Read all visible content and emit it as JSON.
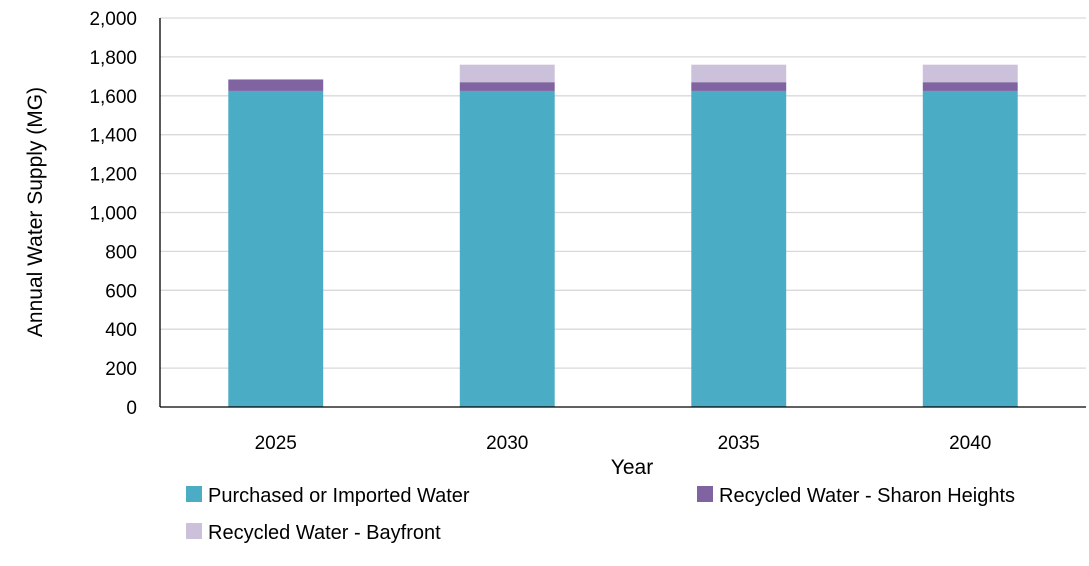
{
  "chart_data": {
    "type": "bar",
    "stacked": true,
    "title": "",
    "xlabel": "Year",
    "ylabel": "Annual Water Supply (MG)",
    "categories": [
      "2025",
      "2030",
      "2035",
      "2040"
    ],
    "ylim": [
      0,
      2000
    ],
    "yticks": [
      0,
      200,
      400,
      600,
      800,
      1000,
      1200,
      1400,
      1600,
      1800,
      2000
    ],
    "ytick_labels": [
      "0",
      "200",
      "400",
      "600",
      "800",
      "1,000",
      "1,200",
      "1,400",
      "1,600",
      "1,800",
      "2,000"
    ],
    "grid": true,
    "legend_position": "bottom",
    "series": [
      {
        "name": "Purchased or Imported Water",
        "color": "#4bacc6",
        "values": [
          1625,
          1625,
          1625,
          1625
        ]
      },
      {
        "name": "Recycled Water - Sharon Heights",
        "color": "#8064a2",
        "values": [
          59,
          45,
          45,
          45
        ]
      },
      {
        "name": "Recycled Water - Bayfront",
        "color": "#ccc1da",
        "values": [
          0,
          90,
          90,
          90
        ]
      }
    ]
  }
}
